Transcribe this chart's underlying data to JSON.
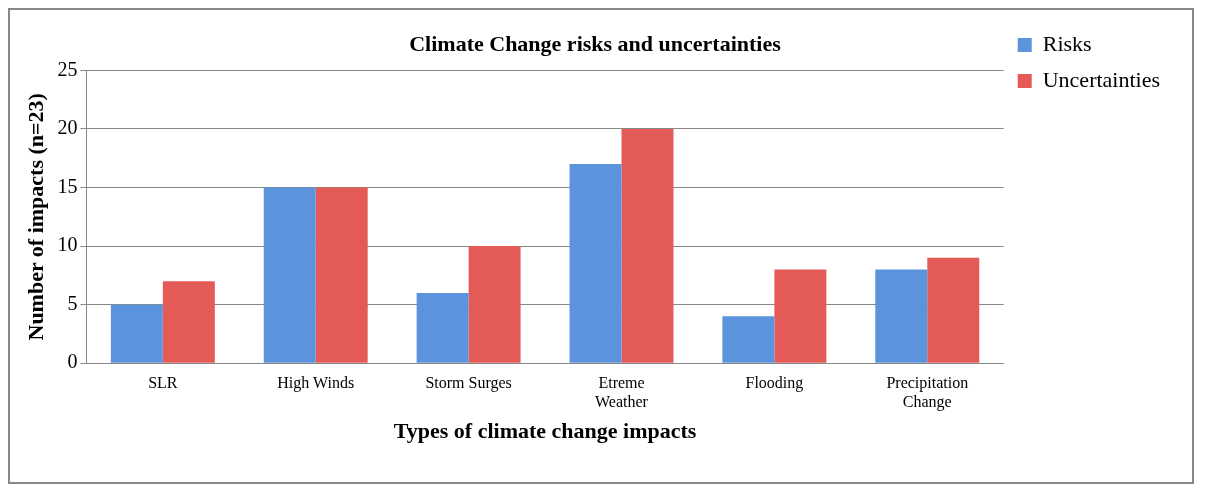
{
  "chart_data": {
    "type": "bar",
    "title": "Climate Change risks and uncertainties",
    "xlabel": "Types of climate change impacts",
    "ylabel": "Number of impacts (n=23)",
    "categories": [
      "SLR",
      "High Winds",
      "Storm Surges",
      "Etreme Weather",
      "Flooding",
      "Precipitation Change"
    ],
    "series": [
      {
        "name": "Risks",
        "color": "#5b93dd",
        "values": [
          5,
          15,
          6,
          17,
          4,
          8
        ]
      },
      {
        "name": "Uncertainties",
        "color": "#e35a57",
        "values": [
          7,
          15,
          10,
          20,
          8,
          9
        ]
      }
    ],
    "ylim": [
      0,
      25
    ],
    "yticks": [
      0,
      5,
      10,
      15,
      20,
      25
    ],
    "grid": "y",
    "legend": "right"
  }
}
